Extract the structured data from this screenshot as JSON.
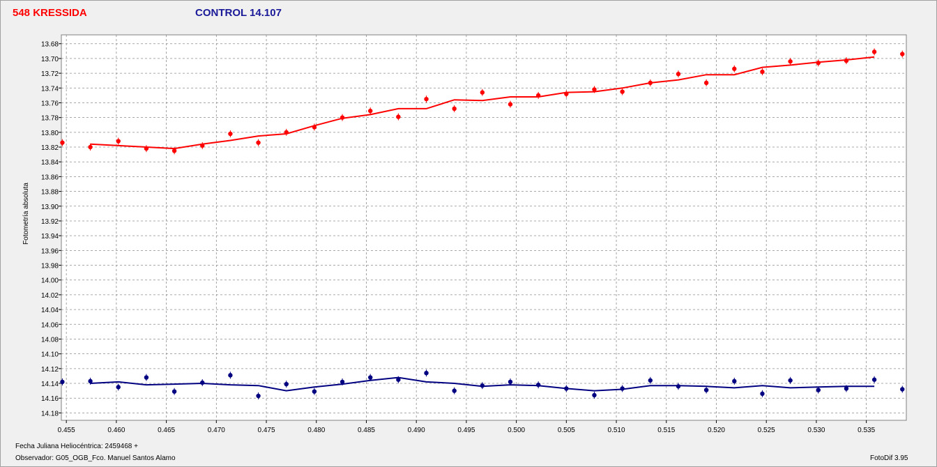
{
  "header": {
    "target_label": "548 KRESSIDA",
    "control_label": "CONTROL 14.107"
  },
  "footer": {
    "jd_label": "Fecha Juliana Heliocéntrica: 2459468 +",
    "observer_label": "Observador: G05_OGB_Fco. Manuel Santos Alamo",
    "software_label": "FotoDif 3.95"
  },
  "colors": {
    "target": "#ff0000",
    "control": "#000080",
    "grid": "#8c8c8c"
  },
  "chart_data": {
    "type": "scatter",
    "ylabel": "Fotometría absoluta",
    "xlabel": "",
    "xlim": [
      0.4545,
      0.539
    ],
    "ylim": [
      14.19,
      13.668
    ],
    "y_inverted": true,
    "grid": true,
    "x_ticks": [
      "0.455",
      "0.460",
      "0.465",
      "0.470",
      "0.475",
      "0.480",
      "0.485",
      "0.490",
      "0.495",
      "0.500",
      "0.505",
      "0.510",
      "0.515",
      "0.520",
      "0.525",
      "0.530",
      "0.535"
    ],
    "y_ticks": [
      "13.68",
      "13.70",
      "13.72",
      "13.74",
      "13.76",
      "13.78",
      "13.80",
      "13.82",
      "13.84",
      "13.86",
      "13.88",
      "13.90",
      "13.92",
      "13.94",
      "13.96",
      "13.98",
      "14.00",
      "14.02",
      "14.04",
      "14.06",
      "14.08",
      "14.10",
      "14.12",
      "14.14",
      "14.16",
      "14.18"
    ],
    "series": [
      {
        "name": "548 KRESSIDA",
        "color": "#ff0000",
        "points": [
          [
            0.4546,
            13.814
          ],
          [
            0.4574,
            13.82
          ],
          [
            0.4602,
            13.812
          ],
          [
            0.463,
            13.822
          ],
          [
            0.4658,
            13.825
          ],
          [
            0.4686,
            13.818
          ],
          [
            0.4714,
            13.802
          ],
          [
            0.4742,
            13.814
          ],
          [
            0.477,
            13.8
          ],
          [
            0.4798,
            13.793
          ],
          [
            0.4826,
            13.78
          ],
          [
            0.4854,
            13.771
          ],
          [
            0.4882,
            13.779
          ],
          [
            0.491,
            13.755
          ],
          [
            0.4938,
            13.768
          ],
          [
            0.4966,
            13.746
          ],
          [
            0.4994,
            13.762
          ],
          [
            0.5022,
            13.75
          ],
          [
            0.505,
            13.748
          ],
          [
            0.5078,
            13.742
          ],
          [
            0.5106,
            13.745
          ],
          [
            0.5134,
            13.733
          ],
          [
            0.5162,
            13.721
          ],
          [
            0.519,
            13.733
          ],
          [
            0.5218,
            13.714
          ],
          [
            0.5246,
            13.718
          ],
          [
            0.5274,
            13.704
          ],
          [
            0.5302,
            13.706
          ],
          [
            0.533,
            13.703
          ],
          [
            0.5358,
            13.691
          ],
          [
            0.5386,
            13.694
          ]
        ],
        "fit": [
          [
            0.4574,
            13.816
          ],
          [
            0.4602,
            13.818
          ],
          [
            0.463,
            13.82
          ],
          [
            0.4658,
            13.822
          ],
          [
            0.4686,
            13.816
          ],
          [
            0.4714,
            13.811
          ],
          [
            0.4742,
            13.805
          ],
          [
            0.477,
            13.802
          ],
          [
            0.4798,
            13.791
          ],
          [
            0.4826,
            13.781
          ],
          [
            0.4854,
            13.776
          ],
          [
            0.4882,
            13.768
          ],
          [
            0.491,
            13.768
          ],
          [
            0.4938,
            13.756
          ],
          [
            0.4966,
            13.757
          ],
          [
            0.4994,
            13.752
          ],
          [
            0.5022,
            13.752
          ],
          [
            0.505,
            13.746
          ],
          [
            0.5078,
            13.745
          ],
          [
            0.5106,
            13.74
          ],
          [
            0.5134,
            13.733
          ],
          [
            0.5162,
            13.729
          ],
          [
            0.519,
            13.722
          ],
          [
            0.5218,
            13.722
          ],
          [
            0.5246,
            13.712
          ],
          [
            0.5274,
            13.709
          ],
          [
            0.5302,
            13.705
          ],
          [
            0.533,
            13.702
          ],
          [
            0.5358,
            13.698
          ]
        ]
      },
      {
        "name": "CONTROL 14.107",
        "color": "#000080",
        "points": [
          [
            0.4546,
            14.138
          ],
          [
            0.4574,
            14.137
          ],
          [
            0.4602,
            14.145
          ],
          [
            0.463,
            14.132
          ],
          [
            0.4658,
            14.151
          ],
          [
            0.4686,
            14.139
          ],
          [
            0.4714,
            14.129
          ],
          [
            0.4742,
            14.157
          ],
          [
            0.477,
            14.141
          ],
          [
            0.4798,
            14.151
          ],
          [
            0.4826,
            14.138
          ],
          [
            0.4854,
            14.132
          ],
          [
            0.4882,
            14.135
          ],
          [
            0.491,
            14.126
          ],
          [
            0.4938,
            14.15
          ],
          [
            0.4966,
            14.143
          ],
          [
            0.4994,
            14.138
          ],
          [
            0.5022,
            14.142
          ],
          [
            0.505,
            14.147
          ],
          [
            0.5078,
            14.156
          ],
          [
            0.5106,
            14.147
          ],
          [
            0.5134,
            14.136
          ],
          [
            0.5162,
            14.144
          ],
          [
            0.519,
            14.149
          ],
          [
            0.5218,
            14.137
          ],
          [
            0.5246,
            14.154
          ],
          [
            0.5274,
            14.136
          ],
          [
            0.5302,
            14.149
          ],
          [
            0.533,
            14.147
          ],
          [
            0.5358,
            14.135
          ],
          [
            0.5386,
            14.148
          ]
        ],
        "fit": [
          [
            0.4574,
            14.14
          ],
          [
            0.4602,
            14.138
          ],
          [
            0.463,
            14.142
          ],
          [
            0.4658,
            14.141
          ],
          [
            0.4686,
            14.14
          ],
          [
            0.4714,
            14.142
          ],
          [
            0.4742,
            14.143
          ],
          [
            0.477,
            14.15
          ],
          [
            0.4798,
            14.145
          ],
          [
            0.4826,
            14.141
          ],
          [
            0.4854,
            14.136
          ],
          [
            0.4882,
            14.132
          ],
          [
            0.491,
            14.138
          ],
          [
            0.4938,
            14.14
          ],
          [
            0.4966,
            14.144
          ],
          [
            0.4994,
            14.142
          ],
          [
            0.5022,
            14.143
          ],
          [
            0.505,
            14.147
          ],
          [
            0.5078,
            14.15
          ],
          [
            0.5106,
            14.148
          ],
          [
            0.5134,
            14.143
          ],
          [
            0.5162,
            14.143
          ],
          [
            0.519,
            14.144
          ],
          [
            0.5218,
            14.146
          ],
          [
            0.5246,
            14.143
          ],
          [
            0.5274,
            14.146
          ],
          [
            0.5302,
            14.145
          ],
          [
            0.533,
            14.144
          ],
          [
            0.5358,
            14.144
          ]
        ]
      }
    ]
  }
}
